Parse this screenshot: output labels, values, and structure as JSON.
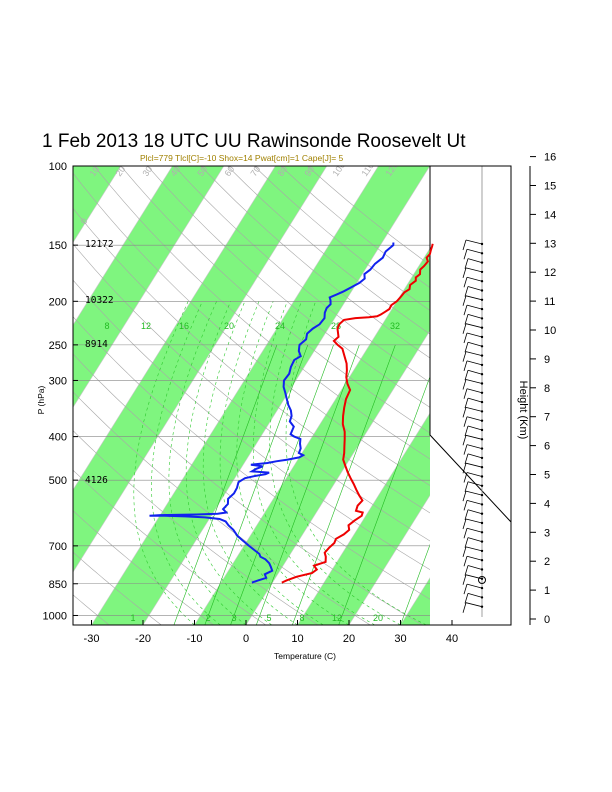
{
  "chart_data": {
    "type": "line",
    "title": "1 Feb 2013 18 UTC UU Rawinsonde Roosevelt Ut",
    "subtitle": "Plcl=779 Tlcl[C]=-10 Shox=14 Pwat[cm]=1 Cape[J]= 5",
    "xlabel": "Temperature (C)",
    "ylabel": "P (hPa)",
    "height_label": "Height (Km)",
    "x_ticks": [
      "-30",
      "-20",
      "-10",
      "0",
      "10",
      "20",
      "30",
      "40"
    ],
    "pressure_ticks": [
      "100",
      "150",
      "200",
      "250",
      "300",
      "400",
      "500",
      "700",
      "850",
      "1000"
    ],
    "height_ticks": [
      "0",
      "1",
      "2",
      "3",
      "4",
      "5",
      "6",
      "7",
      "8",
      "9",
      "10",
      "11",
      "12",
      "13",
      "14",
      "15",
      "16"
    ],
    "height_annotations": [
      "12172",
      "10322",
      "8914",
      "4126"
    ],
    "mixing_ratio_labels": [
      "8",
      "12",
      "16",
      "20",
      "24",
      "28",
      "32"
    ],
    "adiabat_labels": [
      "0",
      "10",
      "20",
      "30",
      "40",
      "50",
      "60",
      "70",
      "80",
      "90",
      "100",
      "110",
      "120",
      "130",
      "140",
      "150",
      "160"
    ],
    "bottom_labels": [
      "1",
      "2",
      "3",
      "5",
      "8",
      "12",
      "20"
    ],
    "series": [
      {
        "name": "Temperature",
        "color": "#ee0000",
        "points": [
          [
            1.8,
            845
          ],
          [
            2.5,
            835
          ],
          [
            4.0,
            820
          ],
          [
            6.5,
            805
          ],
          [
            7.0,
            790
          ],
          [
            6.0,
            775
          ],
          [
            7.8,
            760
          ],
          [
            7.2,
            740
          ],
          [
            6.5,
            725
          ],
          [
            6.8,
            705
          ],
          [
            7.2,
            690
          ],
          [
            7.0,
            675
          ],
          [
            8.0,
            660
          ],
          [
            8.5,
            645
          ],
          [
            7.8,
            630
          ],
          [
            8.4,
            615
          ],
          [
            9.2,
            600
          ],
          [
            9.0,
            590
          ],
          [
            7.5,
            585
          ],
          [
            7.2,
            570
          ],
          [
            7.5,
            555
          ],
          [
            6.2,
            540
          ],
          [
            5.0,
            525
          ],
          [
            3.8,
            510
          ],
          [
            2.5,
            495
          ],
          [
            1.2,
            480
          ],
          [
            0,
            465
          ],
          [
            -1.2,
            450
          ],
          [
            -1.8,
            435
          ],
          [
            -2.6,
            420
          ],
          [
            -3.4,
            405
          ],
          [
            -4.3,
            390
          ],
          [
            -5.6,
            375
          ],
          [
            -6.5,
            360
          ],
          [
            -7.3,
            345
          ],
          [
            -8.0,
            330
          ],
          [
            -8.3,
            315
          ],
          [
            -9.6,
            305
          ],
          [
            -10.6,
            295
          ],
          [
            -11.3,
            285
          ],
          [
            -12.2,
            275
          ],
          [
            -13.5,
            265
          ],
          [
            -14.8,
            255
          ],
          [
            -16.2,
            250
          ],
          [
            -17.4,
            245
          ],
          [
            -17.0,
            240
          ],
          [
            -17.6,
            235
          ],
          [
            -18.2,
            230
          ],
          [
            -18.4,
            225
          ],
          [
            -18.0,
            220
          ],
          [
            -16.0,
            218
          ],
          [
            -13.5,
            217
          ],
          [
            -12.0,
            216
          ],
          [
            -11.5,
            214
          ],
          [
            -11.0,
            211
          ],
          [
            -10.5,
            208
          ],
          [
            -10.6,
            204
          ],
          [
            -10.0,
            200
          ],
          [
            -9.8,
            196
          ],
          [
            -9.6,
            191
          ],
          [
            -9.0,
            188
          ],
          [
            -9.4,
            184
          ],
          [
            -8.8,
            180
          ],
          [
            -9.2,
            177
          ],
          [
            -8.8,
            174
          ],
          [
            -9.3,
            170
          ],
          [
            -9.0,
            167
          ],
          [
            -8.8,
            163
          ],
          [
            -9.5,
            160
          ],
          [
            -9.3,
            157
          ],
          [
            -9.6,
            154
          ],
          [
            -9.8,
            151
          ],
          [
            -10.0,
            149
          ]
        ]
      },
      {
        "name": "Dewpoint",
        "color": "#1122ee",
        "points": [
          [
            -4.0,
            845
          ],
          [
            -3.5,
            840
          ],
          [
            -3.0,
            835
          ],
          [
            -1.8,
            825
          ],
          [
            -2.5,
            810
          ],
          [
            -1.5,
            795
          ],
          [
            -2.2,
            780
          ],
          [
            -3.0,
            765
          ],
          [
            -4.2,
            750
          ],
          [
            -5.5,
            740
          ],
          [
            -6.0,
            730
          ],
          [
            -7.5,
            715
          ],
          [
            -9.0,
            700
          ],
          [
            -11.0,
            680
          ],
          [
            -12.5,
            665
          ],
          [
            -14.0,
            645
          ],
          [
            -15.5,
            630
          ],
          [
            -16.5,
            618
          ],
          [
            -18.0,
            610
          ],
          [
            -21.0,
            605
          ],
          [
            -25.0,
            602
          ],
          [
            -29.0,
            600
          ],
          [
            -32.0,
            600
          ],
          [
            -30.0,
            598
          ],
          [
            -26.0,
            597
          ],
          [
            -23.0,
            596
          ],
          [
            -19.0,
            594
          ],
          [
            -17.5,
            590
          ],
          [
            -18.5,
            580
          ],
          [
            -18.2,
            565
          ],
          [
            -18.8,
            550
          ],
          [
            -18.3,
            535
          ],
          [
            -18.4,
            520
          ],
          [
            -18.8,
            505
          ],
          [
            -18.0,
            495
          ],
          [
            -16.5,
            490
          ],
          [
            -14.5,
            485
          ],
          [
            -14.0,
            481
          ],
          [
            -17.5,
            478
          ],
          [
            -17.0,
            472
          ],
          [
            -16.0,
            466
          ],
          [
            -18.5,
            462
          ],
          [
            -15.5,
            458
          ],
          [
            -14.0,
            454
          ],
          [
            -12.0,
            450
          ],
          [
            -10.0,
            445
          ],
          [
            -9.5,
            440
          ],
          [
            -10.6,
            435
          ],
          [
            -10.8,
            425
          ],
          [
            -11.5,
            415
          ],
          [
            -12.0,
            405
          ],
          [
            -13.5,
            400
          ],
          [
            -14.5,
            395
          ],
          [
            -14.8,
            380
          ],
          [
            -16.2,
            370
          ],
          [
            -16.5,
            360
          ],
          [
            -17.3,
            350
          ],
          [
            -18.5,
            340
          ],
          [
            -19.5,
            330
          ],
          [
            -20.5,
            320
          ],
          [
            -21.6,
            310
          ],
          [
            -22.3,
            300
          ],
          [
            -22.1,
            290
          ],
          [
            -22.6,
            280
          ],
          [
            -22.8,
            270
          ],
          [
            -22.0,
            265
          ],
          [
            -23.0,
            258
          ],
          [
            -23.6,
            250
          ],
          [
            -23.0,
            243
          ],
          [
            -23.5,
            236
          ],
          [
            -23.0,
            230
          ],
          [
            -22.2,
            225
          ],
          [
            -22.0,
            218
          ],
          [
            -22.6,
            212
          ],
          [
            -22.8,
            207
          ],
          [
            -22.5,
            203
          ],
          [
            -23.0,
            199
          ],
          [
            -23.5,
            196
          ],
          [
            -22.5,
            193
          ],
          [
            -21.5,
            190
          ],
          [
            -20.5,
            186
          ],
          [
            -19.5,
            182
          ],
          [
            -19.0,
            178
          ],
          [
            -19.6,
            174
          ],
          [
            -19.0,
            170
          ],
          [
            -18.8,
            165
          ],
          [
            -18.0,
            160
          ],
          [
            -18.2,
            155
          ],
          [
            -17.5,
            150
          ],
          [
            -17.8,
            148
          ]
        ]
      }
    ],
    "wind_levels": 40
  }
}
